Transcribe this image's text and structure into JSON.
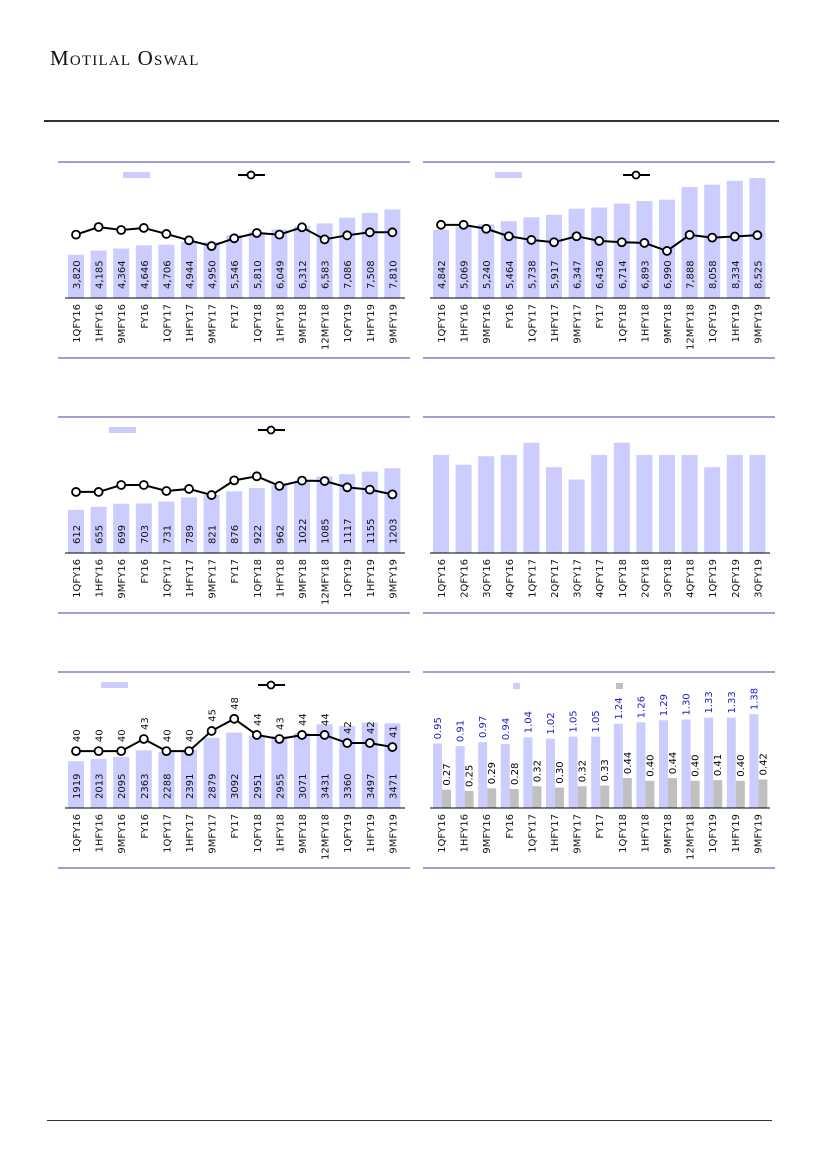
{
  "header": {
    "brand": "Motilal Oswal"
  },
  "colors": {
    "bar": "#ccccff",
    "bar2": "#c0c0c0",
    "line": "#000000",
    "panel_rule": "#6a64b2",
    "blue_label": "#1b1bcc"
  },
  "chart_data": [
    {
      "id": "c1",
      "type": "bar+line",
      "categories": [
        "1QFY16",
        "1HFY16",
        "9MFY16",
        "FY16",
        "1QFY17",
        "1HFY17",
        "9MFY17",
        "FY17",
        "1QFY18",
        "1HFY18",
        "9MFY18",
        "12MFY18",
        "1QFY19",
        "1HFY19",
        "9MFY19"
      ],
      "bar_labels": [
        "3,820",
        "4,185",
        "4,364",
        "4,646",
        "4,706",
        "4,944",
        "4,950",
        "5,546",
        "5,810",
        "6,049",
        "6,312",
        "6,583",
        "7,086",
        "7,508",
        "7,810"
      ],
      "bar_values": [
        3820,
        4185,
        4364,
        4646,
        4706,
        4944,
        4950,
        5546,
        5810,
        6049,
        6312,
        6583,
        7086,
        7508,
        7810
      ],
      "bar_ylim": [
        0,
        12000
      ],
      "line_values": [
        46.6,
        52.2,
        50,
        51.5,
        47.1,
        42.4,
        38.2,
        43.9,
        47.8,
        46.6,
        52,
        43.1,
        46.1,
        48.3,
        48.3
      ],
      "line_ylim": [
        0,
        100
      ],
      "legend": [
        "bar",
        "line"
      ]
    },
    {
      "id": "c2",
      "type": "bar+line",
      "categories": [
        "1QFY16",
        "1HFY16",
        "9MFY16",
        "FY16",
        "1QFY17",
        "1HFY17",
        "9MFY17",
        "FY17",
        "1QFY18",
        "1HFY18",
        "9MFY18",
        "12MFY18",
        "1QFY19",
        "1HFY19",
        "9MFY19"
      ],
      "bar_labels": [
        "4,842",
        "5,069",
        "5,240",
        "5,464",
        "5,738",
        "5,917",
        "6,347",
        "6,436",
        "6,714",
        "6,893",
        "6,990",
        "7,888",
        "8,058",
        "8,334",
        "8,525"
      ],
      "bar_values": [
        4842,
        5069,
        5240,
        5464,
        5738,
        5917,
        6347,
        6436,
        6714,
        6893,
        6990,
        7888,
        8058,
        8334,
        8525
      ],
      "bar_ylim": [
        0,
        9670
      ],
      "line_values": [
        53.8,
        53.8,
        50.9,
        45.4,
        42.7,
        41,
        45.4,
        42,
        41,
        40.5,
        34.6,
        46.4,
        44.4,
        45.2,
        46.2
      ],
      "line_ylim": [
        0,
        100
      ],
      "legend": [
        "bar",
        "line"
      ]
    },
    {
      "id": "c3",
      "type": "bar+line",
      "categories": [
        "1QFY16",
        "1HFY16",
        "9MFY16",
        "FY16",
        "1QFY17",
        "1HFY17",
        "9MFY17",
        "FY17",
        "1QFY18",
        "1HFY18",
        "9MFY18",
        "12MFY18",
        "1QFY19",
        "1HFY19",
        "9MFY19"
      ],
      "bar_labels": [
        "612",
        "655",
        "699",
        "703",
        "731",
        "789",
        "821",
        "876",
        "922",
        "962",
        "1022",
        "1085",
        "1117",
        "1155",
        "1203"
      ],
      "bar_values": [
        612,
        655,
        699,
        703,
        731,
        789,
        821,
        876,
        922,
        962,
        1022,
        1085,
        1117,
        1155,
        1203
      ],
      "bar_ylim": [
        0,
        1930
      ],
      "line_values": [
        44.9,
        44.9,
        50,
        50,
        45.6,
        47.1,
        42.6,
        53.4,
        56.4,
        49.3,
        53.2,
        52.9,
        48.3,
        46.6,
        43.1
      ],
      "line_ylim": [
        0,
        100
      ],
      "legend": [
        "bar",
        "line"
      ]
    },
    {
      "id": "c4",
      "type": "bar",
      "categories": [
        "1QFY16",
        "2QFY16",
        "3QFY16",
        "4QFY16",
        "1QFY17",
        "2QFY17",
        "3QFY17",
        "4QFY17",
        "1QFY18",
        "2QFY18",
        "3QFY18",
        "4QFY18",
        "1QFY19",
        "2QFY19",
        "3QFY19"
      ],
      "bar_values": [
        8,
        7.2,
        7.9,
        8,
        9,
        7,
        6,
        8,
        9,
        8,
        8,
        8,
        7,
        8,
        8
      ],
      "bar_ylim": [
        0,
        11.1
      ],
      "legend": []
    },
    {
      "id": "c5",
      "type": "bar+line",
      "categories": [
        "1QFY16",
        "1HFY16",
        "9MFY16",
        "FY16",
        "1QFY17",
        "1HFY17",
        "9MFY17",
        "FY17",
        "1QFY18",
        "1HFY18",
        "9MFY18",
        "12MFY18",
        "1QFY19",
        "1HFY19",
        "9MFY19"
      ],
      "bar_labels": [
        "1919",
        "2013",
        "2095",
        "2363",
        "2288",
        "2391",
        "2879",
        "3092",
        "2951",
        "2955",
        "3071",
        "3431",
        "3360",
        "3497",
        "3471"
      ],
      "bar_values": [
        1919,
        2013,
        2095,
        2363,
        2288,
        2391,
        2879,
        3092,
        2951,
        2955,
        3071,
        3431,
        3360,
        3497,
        3471
      ],
      "bar_ylim": [
        0,
        5575
      ],
      "line_labels": [
        "40",
        "40",
        "40",
        "43",
        "40",
        "40",
        "45",
        "48",
        "44",
        "43",
        "44",
        "44",
        "42",
        "42",
        "41"
      ],
      "line_values": [
        40,
        40,
        40,
        43,
        40,
        40,
        45,
        48,
        44,
        43,
        44,
        44,
        42,
        42,
        41
      ],
      "line_ylim": [
        25.9,
        59.6
      ],
      "legend": [
        "bar",
        "line"
      ]
    },
    {
      "id": "c6",
      "type": "grouped-bar",
      "categories": [
        "1QFY16",
        "1HFY16",
        "9MFY16",
        "FY16",
        "1QFY17",
        "1HFY17",
        "9MFY17",
        "FY17",
        "1QFY18",
        "1HFY18",
        "9MFY18",
        "12MFY18",
        "1QFY19",
        "1HFY19",
        "9MFY19"
      ],
      "bar_labels": [
        "0.95",
        "0.91",
        "0.97",
        "0.94",
        "1.04",
        "1.02",
        "1.05",
        "1.05",
        "1.24",
        "1.26",
        "1.29",
        "1.30",
        "1.33",
        "1.33",
        "1.38"
      ],
      "bar_values": [
        0.95,
        0.91,
        0.97,
        0.94,
        1.04,
        1.02,
        1.05,
        1.05,
        1.24,
        1.26,
        1.29,
        1.3,
        1.33,
        1.33,
        1.38
      ],
      "bar2_labels": [
        "0.27",
        "0.25",
        "0.29",
        "0.28",
        "0.32",
        "0.30",
        "0.32",
        "0.33",
        "0.44",
        "0.40",
        "0.44",
        "0.40",
        "0.41",
        "0.40",
        "0.42"
      ],
      "bar2_values": [
        0.27,
        0.25,
        0.29,
        0.28,
        0.32,
        0.3,
        0.32,
        0.33,
        0.44,
        0.4,
        0.44,
        0.4,
        0.41,
        0.4,
        0.42
      ],
      "bar_ylim": [
        0,
        2.0
      ],
      "legend": [
        "bar",
        "bar2"
      ]
    }
  ]
}
